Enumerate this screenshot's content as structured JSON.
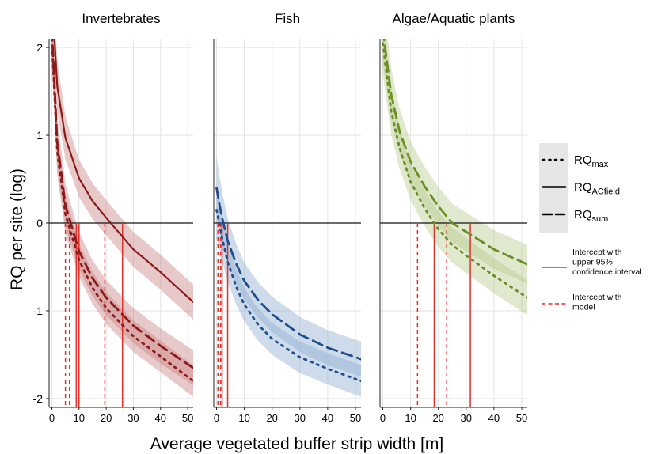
{
  "chart_data": {
    "type": "line",
    "xlabel": "Average vegetated buffer strip width [m]",
    "ylabel": "RQ per site (log)",
    "xlim": [
      -1,
      52
    ],
    "ylim": [
      -2.1,
      2.1
    ],
    "x_ticks": [
      0,
      10,
      20,
      30,
      40,
      50
    ],
    "x_tick_labels": [
      "0",
      "10",
      "20",
      "30",
      "40",
      "50"
    ],
    "y_ticks": [
      2,
      1,
      0,
      -1,
      -2
    ],
    "y_tick_labels": [
      "2",
      "1",
      "0",
      "-1",
      "-2"
    ],
    "grid": true,
    "reference_line_y": 0,
    "colors": {
      "invertebrates": "#8b1a1a",
      "invertebrates_band": "#c97f7f",
      "fish": "#1f4e8c",
      "fish_band": "#8aa9cf",
      "algae": "#6b8e23",
      "algae_band": "#b5c98a",
      "intercept": "#e0302a"
    },
    "panels": [
      {
        "title": "Invertebrates",
        "key": "invertebrates",
        "series": [
          {
            "metric": "RQmax",
            "style": "dotted",
            "x": [
              0,
              2,
              5,
              10,
              15,
              20,
              30,
              40,
              52
            ],
            "y": [
              2.1,
              0.82,
              0.1,
              -0.42,
              -0.74,
              -0.97,
              -1.29,
              -1.52,
              -1.8
            ],
            "band_halfwidth": 0.18
          },
          {
            "metric": "RQACfield",
            "style": "solid",
            "x": [
              0,
              2,
              5,
              10,
              15,
              20,
              30,
              40,
              52
            ],
            "y": [
              2.6,
              1.56,
              0.97,
              0.51,
              0.25,
              0.06,
              -0.3,
              -0.56,
              -0.9
            ],
            "band_halfwidth": 0.2
          },
          {
            "metric": "RQsum",
            "style": "dashed",
            "x": [
              0,
              2,
              5,
              10,
              15,
              20,
              30,
              40,
              52
            ],
            "y": [
              2.2,
              0.92,
              0.2,
              -0.32,
              -0.63,
              -0.85,
              -1.17,
              -1.4,
              -1.65
            ],
            "band_halfwidth": 0.2
          }
        ],
        "intercepts_model": [
          5,
          6.5,
          19.5
        ],
        "intercepts_upper95": [
          9,
          10,
          26
        ]
      },
      {
        "title": "Fish",
        "key": "fish",
        "series": [
          {
            "metric": "RQmax",
            "style": "dotted",
            "x": [
              0,
              1,
              2,
              4,
              7,
              10,
              15,
              20,
              30,
              40,
              52
            ],
            "y": [
              0.15,
              0.0,
              -0.17,
              -0.44,
              -0.72,
              -0.93,
              -1.16,
              -1.32,
              -1.53,
              -1.66,
              -1.8
            ],
            "band_halfwidth": 0.18
          },
          {
            "metric": "RQsum",
            "style": "dashed",
            "x": [
              0,
              1,
              2,
              4,
              7,
              10,
              15,
              20,
              30,
              40,
              52
            ],
            "y": [
              0.4,
              0.22,
              0.06,
              -0.2,
              -0.46,
              -0.66,
              -0.88,
              -1.04,
              -1.27,
              -1.42,
              -1.55
            ],
            "band_halfwidth": 0.2
          }
        ],
        "intercepts_model": [
          0.5,
          1.5
        ],
        "intercepts_upper95": [
          2,
          4
        ]
      },
      {
        "title": "Algae/Aquatic plants",
        "key": "algae",
        "series": [
          {
            "metric": "RQmax",
            "style": "dotted",
            "x": [
              0,
              3,
              6,
              10,
              15,
              20,
              25,
              30,
              40,
              52
            ],
            "y": [
              2.05,
              1.28,
              0.86,
              0.47,
              0.17,
              -0.07,
              -0.25,
              -0.37,
              -0.6,
              -0.85
            ],
            "band_halfwidth": 0.2
          },
          {
            "metric": "RQsum",
            "style": "dashed",
            "x": [
              0,
              3,
              6,
              10,
              15,
              20,
              25,
              30,
              40,
              52
            ],
            "y": [
              2.2,
              1.47,
              1.05,
              0.7,
              0.42,
              0.19,
              0.0,
              -0.1,
              -0.3,
              -0.47
            ],
            "band_halfwidth": 0.22
          }
        ],
        "intercepts_model": [
          12.5,
          23
        ],
        "intercepts_upper95": [
          18.5,
          31.5
        ]
      }
    ],
    "legend": {
      "placement": "right",
      "metrics": [
        {
          "base": "RQ",
          "sub": "max",
          "style": "dotted"
        },
        {
          "base": "RQ",
          "sub": "ACfield",
          "style": "solid"
        },
        {
          "base": "RQ",
          "sub": "sum",
          "style": "dashed"
        }
      ],
      "intercepts": [
        {
          "lines": [
            "Intercept with",
            "upper 95%",
            "confidence interval"
          ],
          "style": "solid"
        },
        {
          "lines": [
            "Intercept with",
            "model"
          ],
          "style": "dashed"
        }
      ]
    }
  }
}
